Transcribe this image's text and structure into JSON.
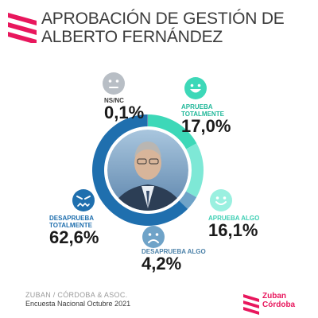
{
  "header": {
    "title": "APROBACIÓN DE GESTIÓN DE\nALBERTO FERNÁNDEZ"
  },
  "colors": {
    "brand": "#e8175d",
    "aprueba_totalmente": "#3dd8b8",
    "aprueba_algo": "#7ee8d6",
    "desaprueba_algo": "#6fa3c8",
    "desaprueba_totalmente": "#1f6fae",
    "nsnc": "#9aa7b3"
  },
  "chart_data": {
    "type": "pie",
    "subtype": "donut",
    "slices": [
      {
        "label": "APRUEBA TOTALMENTE",
        "value": 17.0,
        "display": "17,0%",
        "color": "#3dd8b8",
        "icon": "happy-face"
      },
      {
        "label": "APRUEBA ALGO",
        "value": 16.1,
        "display": "16,1%",
        "color": "#7ee8d6",
        "icon": "smile-face"
      },
      {
        "label": "DESAPRUEBA ALGO",
        "value": 4.2,
        "display": "4,2%",
        "color": "#6fa3c8",
        "icon": "sad-face"
      },
      {
        "label": "DESAPRUEBA TOTALMENTE",
        "value": 62.6,
        "display": "62,6%",
        "color": "#1f6fae",
        "icon": "angry-face"
      },
      {
        "label": "NS/NC",
        "value": 0.1,
        "display": "0,1%",
        "color": "#9aa7b3",
        "icon": "neutral-face"
      }
    ]
  },
  "labels": {
    "aprueba_totalmente": {
      "cat": "APRUEBA\nTOTALMENTE",
      "pct": "17,0%"
    },
    "aprueba_algo": {
      "cat": "APRUEBA ALGO",
      "pct": "16,1%"
    },
    "desaprueba_algo": {
      "cat": "DESAPRUEBA ALGO",
      "pct": "4,2%"
    },
    "desaprueba_totalmente": {
      "cat": "DESAPRUEBA\nTOTALMENTE",
      "pct": "62,6%"
    },
    "nsnc": {
      "cat": "NS/NC",
      "pct": "0,1%"
    }
  },
  "footer": {
    "source": "ZUBAN / CÓRDOBA & ASOC.",
    "note": "Encuesta Nacional Octubre 2021",
    "brand": "Zuban\nCórdoba"
  }
}
